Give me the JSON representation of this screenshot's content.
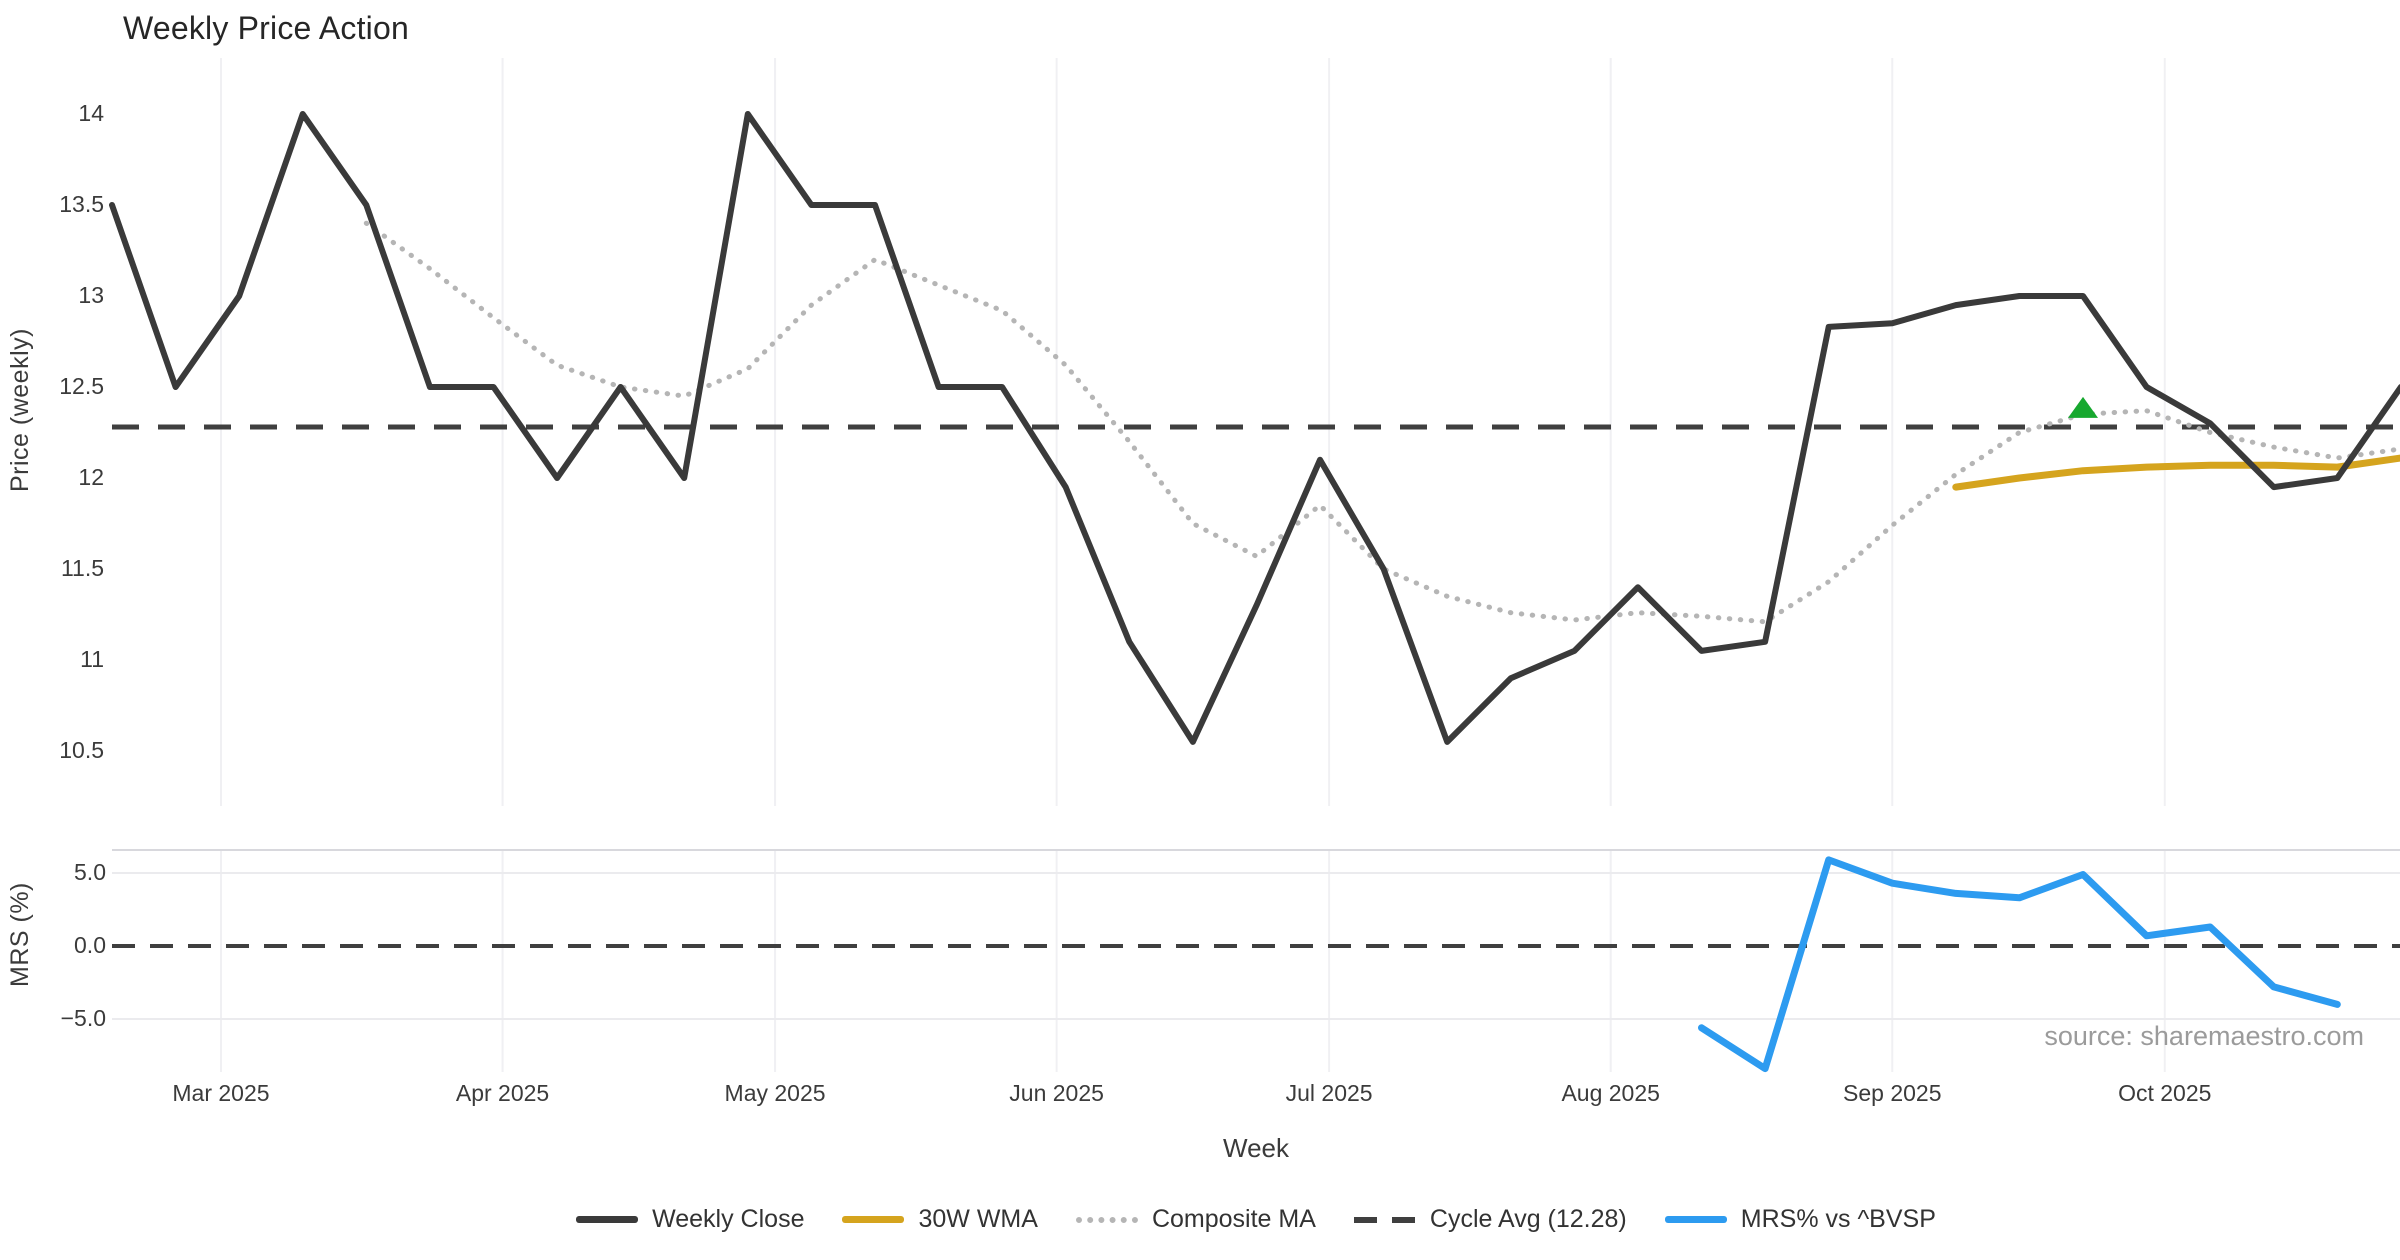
{
  "title": "Weekly Price Action",
  "source_note": "source: sharemaestro.com",
  "colors": {
    "weekly_close": "#3a3a3a",
    "wma_30w": "#d5a41e",
    "composite_ma": "#b5b5b5",
    "cycle_avg": "#3f3f3f",
    "mrs": "#2d9bf0",
    "marker_green": "#17a82f",
    "gridline": "#f0f0f3",
    "panel_border": "#d8d8dd"
  },
  "legend": {
    "items": [
      {
        "label": "Weekly Close",
        "style": "solid",
        "color": "#3a3a3a"
      },
      {
        "label": "30W WMA",
        "style": "solid",
        "color": "#d5a41e"
      },
      {
        "label": "Composite MA",
        "style": "dotted",
        "color": "#b5b5b5"
      },
      {
        "label": "Cycle Avg (12.28)",
        "style": "dashed",
        "color": "#3f3f3f"
      },
      {
        "label": "MRS% vs ^BVSP",
        "style": "solid",
        "color": "#2d9bf0"
      }
    ]
  },
  "chart_data": {
    "type": "line",
    "xlabel": "Week",
    "x_tick_labels": [
      "Mar 2025",
      "Apr 2025",
      "May 2025",
      "Jun 2025",
      "Jul 2025",
      "Aug 2025",
      "Sep 2025",
      "Oct 2025"
    ],
    "x_tick_dates": [
      "2025-03-01",
      "2025-04-01",
      "2025-05-01",
      "2025-06-01",
      "2025-07-01",
      "2025-08-01",
      "2025-09-01",
      "2025-10-01"
    ],
    "week_dates": [
      "2025-02-17",
      "2025-02-24",
      "2025-03-03",
      "2025-03-10",
      "2025-03-17",
      "2025-03-24",
      "2025-03-31",
      "2025-04-07",
      "2025-04-14",
      "2025-04-21",
      "2025-04-28",
      "2025-05-05",
      "2025-05-12",
      "2025-05-19",
      "2025-05-26",
      "2025-06-02",
      "2025-06-09",
      "2025-06-16",
      "2025-06-23",
      "2025-06-30",
      "2025-07-07",
      "2025-07-14",
      "2025-07-21",
      "2025-07-28",
      "2025-08-04",
      "2025-08-11",
      "2025-08-18",
      "2025-08-25",
      "2025-09-01",
      "2025-09-08",
      "2025-09-15",
      "2025-09-22",
      "2025-09-29",
      "2025-10-06",
      "2025-10-13",
      "2025-10-20",
      "2025-10-27"
    ],
    "panels": [
      {
        "ylabel": "Price (weekly)",
        "ytick_labels": [
          "14",
          "13.5",
          "13",
          "12.5",
          "12",
          "11.5",
          "11",
          "10.5"
        ],
        "ytick_values": [
          14,
          13.5,
          13,
          12.5,
          12,
          11.5,
          11,
          10.5
        ],
        "reference_line": {
          "name": "Cycle Avg",
          "value": 12.28
        },
        "series": [
          {
            "name": "Weekly Close",
            "values": [
              13.5,
              12.5,
              13.0,
              14.0,
              13.5,
              12.5,
              12.5,
              12.0,
              12.5,
              12.0,
              14.0,
              13.5,
              13.5,
              12.5,
              12.5,
              11.95,
              11.1,
              10.55,
              11.3,
              12.1,
              11.5,
              10.55,
              10.9,
              11.05,
              11.4,
              11.05,
              11.1,
              12.83,
              12.85,
              12.95,
              13.0,
              13.0,
              12.5,
              12.3,
              11.95,
              12.0,
              12.5
            ]
          },
          {
            "name": "Composite MA",
            "values": [
              null,
              null,
              null,
              null,
              13.4,
              13.15,
              12.88,
              12.62,
              12.5,
              12.45,
              12.6,
              12.95,
              13.2,
              13.06,
              12.92,
              12.62,
              12.2,
              11.75,
              11.57,
              11.85,
              11.5,
              11.35,
              11.26,
              11.22,
              11.26,
              11.24,
              11.21,
              11.43,
              11.74,
              12.02,
              12.25,
              12.35,
              12.37,
              12.25,
              12.17,
              12.11,
              12.16
            ]
          },
          {
            "name": "30W WMA",
            "values": [
              null,
              null,
              null,
              null,
              null,
              null,
              null,
              null,
              null,
              null,
              null,
              null,
              null,
              null,
              null,
              null,
              null,
              null,
              null,
              null,
              null,
              null,
              null,
              null,
              null,
              null,
              null,
              null,
              null,
              11.95,
              12.0,
              12.04,
              12.06,
              12.07,
              12.07,
              12.06,
              12.11
            ]
          }
        ],
        "marker": {
          "shape": "triangle-up",
          "date": "2025-09-22",
          "value": 12.38
        }
      },
      {
        "ylabel": "MRS (%)",
        "ytick_labels": [
          "5.0",
          "0.0",
          "−5.0"
        ],
        "ytick_values": [
          5,
          0,
          -5
        ],
        "reference_line": {
          "name": "zero",
          "value": 0
        },
        "series": [
          {
            "name": "MRS% vs ^BVSP",
            "values": [
              null,
              null,
              null,
              null,
              null,
              null,
              null,
              null,
              null,
              null,
              null,
              null,
              null,
              null,
              null,
              null,
              null,
              null,
              null,
              null,
              null,
              null,
              null,
              null,
              null,
              -5.6,
              -8.4,
              5.9,
              4.3,
              3.6,
              3.3,
              4.9,
              0.7,
              1.3,
              -2.8,
              -4.0,
              null
            ]
          }
        ]
      }
    ]
  }
}
